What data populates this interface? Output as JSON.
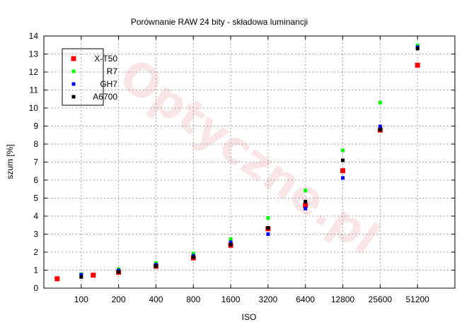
{
  "chart_data": {
    "type": "scatter",
    "title": "Porównanie RAW 24 bity - składowa luminancji",
    "xlabel": "ISO",
    "ylabel": "szum [%]",
    "x_scale": "log2",
    "x_ticks": [
      100,
      200,
      400,
      800,
      1600,
      3200,
      6400,
      12800,
      25600,
      51200
    ],
    "xlim": [
      50,
      102400
    ],
    "ylim": [
      0,
      14
    ],
    "y_ticks": [
      0,
      1,
      2,
      3,
      4,
      5,
      6,
      7,
      8,
      9,
      10,
      11,
      12,
      13,
      14
    ],
    "grid": true,
    "legend_position": "top-left",
    "watermark": "Optyczne.pl",
    "series": [
      {
        "name": "X-T50",
        "color": "#ff0000",
        "points": [
          {
            "x": 64,
            "y": 0.52
          },
          {
            "x": 125,
            "y": 0.72
          },
          {
            "x": 200,
            "y": 0.88
          },
          {
            "x": 400,
            "y": 1.22
          },
          {
            "x": 800,
            "y": 1.68
          },
          {
            "x": 1600,
            "y": 2.38
          },
          {
            "x": 3200,
            "y": 3.3
          },
          {
            "x": 6400,
            "y": 4.6
          },
          {
            "x": 12800,
            "y": 6.52
          },
          {
            "x": 25600,
            "y": 8.78
          },
          {
            "x": 51200,
            "y": 12.38
          }
        ]
      },
      {
        "name": "R7",
        "color": "#00ff00",
        "points": [
          {
            "x": 100,
            "y": 0.78
          },
          {
            "x": 200,
            "y": 1.05
          },
          {
            "x": 400,
            "y": 1.4
          },
          {
            "x": 800,
            "y": 1.92
          },
          {
            "x": 1600,
            "y": 2.72
          },
          {
            "x": 3200,
            "y": 3.9
          },
          {
            "x": 6400,
            "y": 5.42
          },
          {
            "x": 12800,
            "y": 7.65
          },
          {
            "x": 25600,
            "y": 10.3
          },
          {
            "x": 51200,
            "y": 13.48
          }
        ]
      },
      {
        "name": "GH7",
        "color": "#0000ff",
        "points": [
          {
            "x": 100,
            "y": 0.74
          },
          {
            "x": 200,
            "y": 0.98
          },
          {
            "x": 400,
            "y": 1.3
          },
          {
            "x": 800,
            "y": 1.8
          },
          {
            "x": 1600,
            "y": 2.55
          },
          {
            "x": 3200,
            "y": 3.0
          },
          {
            "x": 6400,
            "y": 4.42
          },
          {
            "x": 12800,
            "y": 6.12
          },
          {
            "x": 25600,
            "y": 8.98
          },
          {
            "x": 51200,
            "y": 13.38
          }
        ]
      },
      {
        "name": "A6700",
        "color": "#000000",
        "points": [
          {
            "x": 100,
            "y": 0.62
          },
          {
            "x": 200,
            "y": 0.9
          },
          {
            "x": 400,
            "y": 1.22
          },
          {
            "x": 800,
            "y": 1.72
          },
          {
            "x": 1600,
            "y": 2.42
          },
          {
            "x": 3200,
            "y": 3.35
          },
          {
            "x": 6400,
            "y": 4.8
          },
          {
            "x": 12800,
            "y": 7.1
          },
          {
            "x": 25600,
            "y": 8.8
          },
          {
            "x": 51200,
            "y": 13.3
          }
        ]
      }
    ]
  }
}
